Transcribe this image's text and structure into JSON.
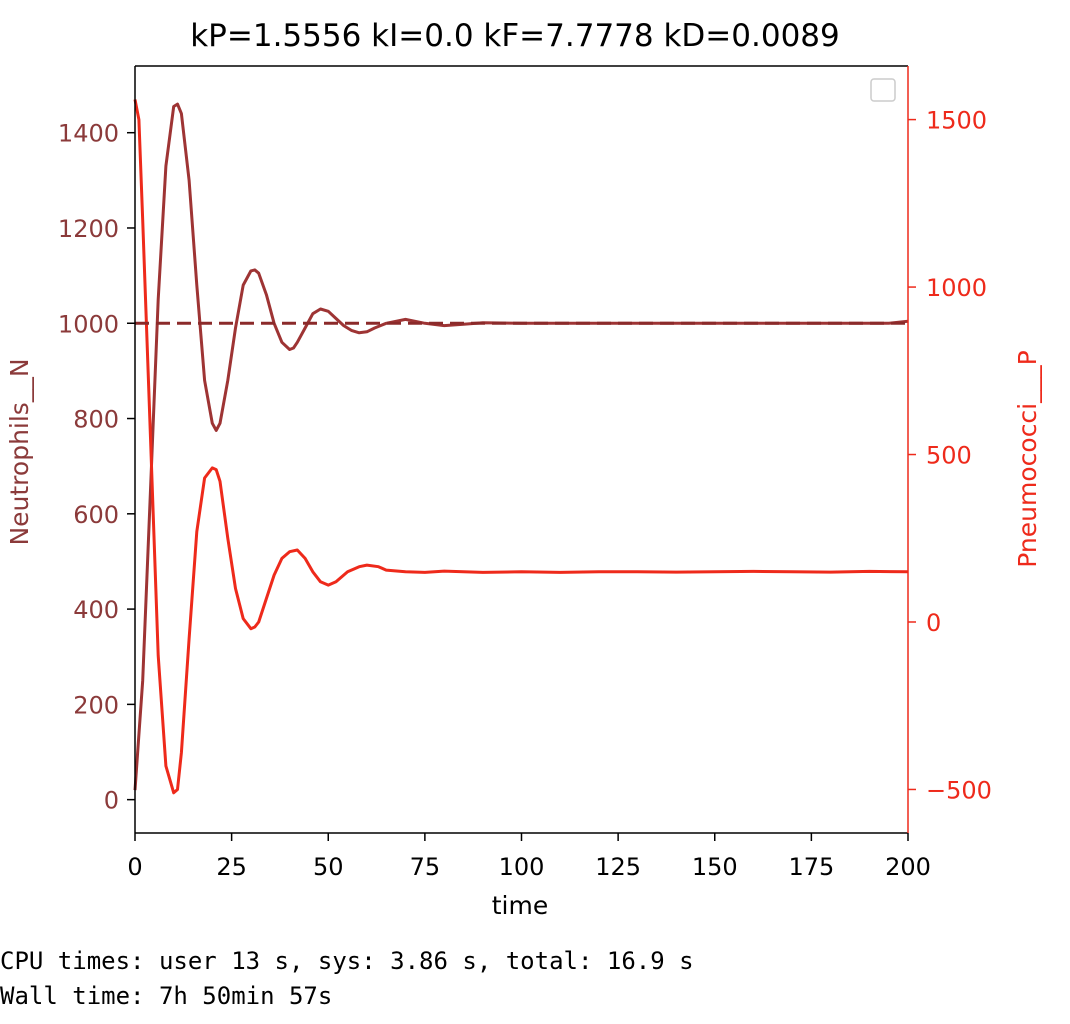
{
  "chart_data": {
    "type": "line",
    "title": "kP=1.5556 kI=0.0 kF=7.7778 kD=0.0089",
    "xlabel": "time",
    "ylabel_left": "Neutrophils__N",
    "ylabel_right": "Pneumococci___P",
    "xlim": [
      0,
      200
    ],
    "ylim_left": [
      -70,
      1540
    ],
    "ylim_right": [
      -630,
      1660
    ],
    "x_ticks": [
      0,
      25,
      50,
      75,
      100,
      125,
      150,
      175,
      200
    ],
    "y_ticks_left": [
      0,
      200,
      400,
      600,
      800,
      1000,
      1200,
      1400
    ],
    "y_ticks_right": [
      -500,
      0,
      500,
      1000,
      1500
    ],
    "legend": "top-right (empty)",
    "grid": false,
    "colors": {
      "left_axis": "#8b3a3a",
      "right_axis": "#ee2a1b",
      "setpoint": "#8b2a2a"
    },
    "series": [
      {
        "name": "Neutrophils__N",
        "axis": "left",
        "color": "#9e3434",
        "x": [
          0,
          2,
          4,
          6,
          8,
          10,
          11,
          12,
          14,
          16,
          18,
          20,
          21,
          22,
          24,
          26,
          28,
          30,
          31,
          32,
          34,
          36,
          38,
          40,
          41,
          42,
          44,
          46,
          48,
          50,
          52,
          54,
          56,
          58,
          60,
          62,
          65,
          70,
          75,
          80,
          85,
          90,
          100,
          110,
          120,
          140,
          160,
          180,
          195,
          200
        ],
        "y": [
          20,
          250,
          650,
          1050,
          1330,
          1455,
          1460,
          1440,
          1300,
          1080,
          880,
          790,
          775,
          790,
          880,
          990,
          1080,
          1110,
          1112,
          1105,
          1060,
          1000,
          960,
          945,
          948,
          960,
          990,
          1020,
          1030,
          1025,
          1010,
          995,
          985,
          980,
          982,
          990,
          1000,
          1008,
          1000,
          995,
          998,
          1001,
          1000,
          1000,
          1000,
          1000,
          1000,
          1000,
          1000,
          1004
        ]
      },
      {
        "name": "Pneumococci___P",
        "axis": "right",
        "color": "#ee2a1b",
        "x": [
          0,
          1,
          2,
          4,
          6,
          8,
          10,
          11,
          12,
          14,
          16,
          18,
          20,
          21,
          22,
          24,
          26,
          28,
          30,
          31,
          32,
          34,
          36,
          38,
          40,
          42,
          44,
          46,
          48,
          50,
          52,
          55,
          58,
          60,
          63,
          65,
          70,
          75,
          80,
          90,
          100,
          110,
          120,
          130,
          140,
          150,
          160,
          170,
          180,
          190,
          200
        ],
        "y": [
          1560,
          1500,
          1200,
          550,
          -100,
          -430,
          -510,
          -500,
          -390,
          -50,
          270,
          430,
          460,
          455,
          420,
          250,
          100,
          10,
          -20,
          -15,
          0,
          70,
          140,
          190,
          210,
          215,
          190,
          150,
          120,
          110,
          120,
          150,
          165,
          170,
          165,
          155,
          150,
          148,
          152,
          148,
          150,
          148,
          150,
          150,
          149,
          150,
          151,
          150,
          149,
          151,
          150
        ]
      },
      {
        "name": "setpoint",
        "axis": "left",
        "style": "dashed",
        "color": "#8b2a2a",
        "x": [
          0,
          200
        ],
        "y": [
          1000,
          1000
        ]
      }
    ]
  },
  "output": {
    "cpu_times": "CPU times: user 13 s, sys: 3.86 s, total: 16.9 s",
    "wall_time": "Wall time: 7h 50min 57s"
  }
}
